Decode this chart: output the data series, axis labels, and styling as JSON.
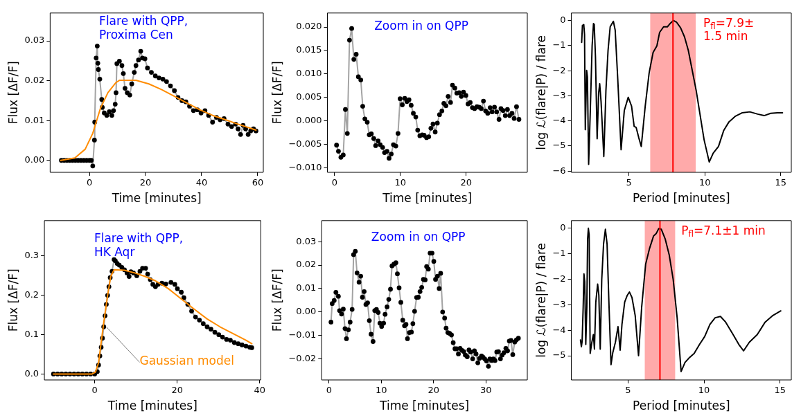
{
  "chart_data": [
    {
      "type": "line",
      "xlabel": "Time [minutes]",
      "ylabel": "Flux [ΔF/F]",
      "xlim": [
        -14,
        62
      ],
      "ylim": [
        -0.003,
        0.037
      ],
      "xticks": [
        0,
        20,
        40,
        60
      ],
      "yticks": [
        {
          "value": 0,
          "label": "0.00"
        },
        0.01,
        0.02,
        0.03
      ],
      "marker": "circle",
      "annotations": [
        "Flare with QPP,\nProxima Cen"
      ],
      "series": [
        {
          "color": "#000000",
          "x": [
            -10,
            -9,
            -8,
            -7,
            -6,
            -5,
            -4,
            -3,
            -2,
            -1,
            0,
            0.7,
            1.2,
            1.8,
            1.9,
            2.4,
            2.8,
            3.0,
            3.2,
            3.7,
            4.4,
            4.6,
            5.3,
            6.2,
            7.1,
            8.0,
            8.6,
            9.2,
            9.5,
            9.8,
            10.7,
            11.6,
            12.1,
            12.7,
            13.5,
            14.4,
            15.1,
            16.0,
            16.6,
            17.5,
            18.3,
            18.9,
            19.8,
            20.7,
            22.1,
            23.5,
            24.8,
            26.2,
            27.5,
            28.9,
            30.3,
            31.6,
            33.0,
            34.4,
            35.7,
            37.1,
            38.5,
            39.8,
            41.2,
            42.5,
            43.9,
            45.3,
            46.6,
            48.0,
            49.4,
            50.7,
            52.1,
            53.0,
            53.9,
            54.8,
            55.7,
            56.6,
            57.5,
            58.5,
            59.4
          ],
          "values": [
            0,
            0,
            0,
            0,
            0,
            0,
            0,
            0,
            0,
            0,
            0,
            0,
            -0.0014,
            0.0051,
            0.0096,
            0.0257,
            0.0287,
            0.0244,
            0.0228,
            0.0204,
            0.0153,
            0.0133,
            0.0119,
            0.0113,
            0.0122,
            0.0113,
            0.0125,
            0.0141,
            0.017,
            0.0243,
            0.0249,
            0.0238,
            0.0218,
            0.0181,
            0.017,
            0.0164,
            0.0192,
            0.0221,
            0.0238,
            0.0252,
            0.0274,
            0.0257,
            0.0255,
            0.0232,
            0.0221,
            0.0212,
            0.0207,
            0.0204,
            0.0198,
            0.0187,
            0.0175,
            0.0158,
            0.015,
            0.0147,
            0.0136,
            0.0125,
            0.0127,
            0.0119,
            0.0125,
            0.0113,
            0.0096,
            0.0108,
            0.0102,
            0.0105,
            0.0091,
            0.0085,
            0.0091,
            0.0079,
            0.0065,
            0.0088,
            0.0079,
            0.0065,
            0.0074,
            0.0079,
            0.0074
          ]
        },
        {
          "color": "#ff8c00",
          "marker": "none",
          "x": [
            -10.2,
            -5.2,
            -1.5,
            1.2,
            3.9,
            6.6,
            9.4,
            10.7,
            16.6,
            21.2,
            25.7,
            30.3,
            34.8,
            39.4,
            43.9,
            48.5,
            53.0,
            59.4
          ],
          "values": [
            0,
            0.0006,
            0.0028,
            0.0068,
            0.013,
            0.017,
            0.0195,
            0.0201,
            0.0201,
            0.0192,
            0.0178,
            0.0161,
            0.0144,
            0.0127,
            0.0113,
            0.0102,
            0.0091,
            0.0076
          ]
        }
      ]
    },
    {
      "type": "line",
      "xlabel": "Time [minutes]",
      "ylabel": "Flux [ΔF/F]",
      "xlim": [
        -1.1,
        29.3
      ],
      "ylim": [
        -0.011,
        0.023
      ],
      "xticks": [
        0,
        10,
        20
      ],
      "yticks": [
        {
          "value": -0.01,
          "label": "−0.010"
        },
        {
          "value": -0.005,
          "label": "−0.005"
        },
        {
          "value": 0,
          "label": "0.000"
        },
        {
          "value": 0.005,
          "label": "0.005"
        },
        {
          "value": 0.01,
          "label": "0.010"
        },
        {
          "value": 0.015,
          "label": "0.015"
        },
        {
          "value": 0.02,
          "label": "0.020"
        }
      ],
      "marker": "circle",
      "annotations": [
        "Zoom in on QPP"
      ],
      "series": [
        {
          "color": "#000000",
          "x": [
            0.29,
            0.58,
            0.95,
            1.31,
            1.64,
            1.93,
            2.26,
            2.59,
            2.92,
            3.28,
            3.61,
            3.98,
            4.27,
            4.6,
            4.96,
            5.26,
            5.58,
            5.95,
            6.24,
            6.61,
            6.93,
            7.3,
            7.59,
            7.96,
            8.28,
            8.61,
            8.94,
            9.31,
            9.64,
            9.96,
            10.29,
            10.66,
            10.99,
            11.31,
            11.64,
            11.97,
            12.34,
            12.63,
            12.96,
            13.32,
            13.61,
            13.98,
            14.31,
            14.64,
            14.96,
            15.29,
            15.62,
            15.95,
            16.31,
            16.61,
            16.93,
            17.26,
            17.63,
            17.92,
            18.28,
            18.58,
            18.94,
            19.27,
            19.6,
            19.96,
            20.29,
            20.62,
            20.95,
            21.28,
            21.64,
            21.97,
            22.3,
            22.63,
            22.96,
            23.28,
            23.65,
            23.94,
            24.31,
            24.64,
            25.0,
            25.29,
            25.62,
            25.95,
            26.28,
            26.61,
            26.97,
            27.3,
            27.66,
            28.03
          ],
          "values": [
            -0.0052,
            -0.0065,
            -0.0078,
            -0.0073,
            0.0024,
            -0.0027,
            0.0172,
            0.0197,
            0.0131,
            0.0142,
            0.0094,
            0.0087,
            0.0031,
            0.0004,
            -0.0003,
            -0.003,
            -0.0028,
            -0.0038,
            -0.0053,
            -0.0043,
            -0.0051,
            -0.0057,
            -0.0068,
            -0.0065,
            -0.008,
            -0.0071,
            -0.0051,
            -0.0054,
            -0.0027,
            0.0047,
            0.0034,
            0.0048,
            0.0041,
            0.0045,
            0.0033,
            0.0016,
            0.0008,
            -0.002,
            -0.0032,
            -0.003,
            -0.0031,
            -0.0036,
            -0.0034,
            -0.0016,
            -0.0007,
            -0.0024,
            -0.0005,
            0.0013,
            0.0021,
            0.0037,
            0.0032,
            0.0052,
            0.0039,
            0.0076,
            0.007,
            0.0059,
            0.006,
            0.0052,
            0.0061,
            0.0054,
            0.0036,
            0.0039,
            0.0028,
            0.0026,
            0.003,
            0.0029,
            0.0026,
            0.0042,
            0.0021,
            0.0016,
            0.0028,
            0.0019,
            0.0029,
            0.0019,
            0.0003,
            0.0026,
            0.0022,
            0.0011,
            0.0024,
            0.0011,
            0.0016,
            0.0005,
            0.003,
            0.0003
          ]
        }
      ]
    },
    {
      "type": "line",
      "xlabel": "Period [minutes]",
      "ylabel": "log ℒ(flare|P) / flare",
      "xlim": [
        1.2,
        15.7
      ],
      "ylim": [
        -6.05,
        0.3
      ],
      "xticks": [
        5,
        10,
        15
      ],
      "yticks": [
        {
          "value": -6,
          "label": "−6"
        },
        {
          "value": -5,
          "label": "−5"
        },
        {
          "value": -4,
          "label": "−4"
        },
        {
          "value": -3,
          "label": "−3"
        },
        {
          "value": -2,
          "label": "−2"
        },
        {
          "value": -1,
          "label": "−1"
        },
        0
      ],
      "marker": "none",
      "annotations": [
        "P$_{fl}$=7.9±\n1.5 min"
      ],
      "ref_lines": [
        {
          "axis": "x",
          "value": 7.9,
          "color": "#ff0000"
        }
      ],
      "bands": [
        {
          "axis": "x",
          "from": 6.4,
          "to": 9.4,
          "color": "#ffaaaa"
        }
      ],
      "series": [
        {
          "color": "#000000",
          "x": [
            1.88,
            1.93,
            2.02,
            2.07,
            2.12,
            2.21,
            2.26,
            2.34,
            2.45,
            2.57,
            2.66,
            2.71,
            2.79,
            2.9,
            3.0,
            3.07,
            3.16,
            3.34,
            3.48,
            3.62,
            3.76,
            3.97,
            4.09,
            4.26,
            4.48,
            4.69,
            4.95,
            5.17,
            5.34,
            5.47,
            5.64,
            5.81,
            6.07,
            6.33,
            6.59,
            6.84,
            7.02,
            7.28,
            7.53,
            7.71,
            7.93,
            8.14,
            8.4,
            8.66,
            8.91,
            9.17,
            9.43,
            9.69,
            9.95,
            10.29,
            10.55,
            10.9,
            11.24,
            11.59,
            12.02,
            12.45,
            12.97,
            13.48,
            13.91,
            14.34,
            14.78,
            15.12
          ],
          "values": [
            -0.87,
            -0.2,
            -0.16,
            -0.56,
            -4.35,
            -1.99,
            -2.25,
            -5.73,
            -3.59,
            -1.01,
            -0.12,
            -0.16,
            -1.45,
            -4.71,
            -2.88,
            -2.52,
            -3.24,
            -5.42,
            -2.79,
            -1.19,
            -0.25,
            -0.03,
            -0.38,
            -2.34,
            -5.15,
            -3.59,
            -3.06,
            -3.41,
            -4.22,
            -4.26,
            -4.66,
            -5.02,
            -3.41,
            -2.08,
            -1.27,
            -1.01,
            -0.47,
            -0.25,
            -0.25,
            -0.12,
            0,
            -0.07,
            -0.29,
            -0.65,
            -1.19,
            -1.99,
            -2.79,
            -3.77,
            -4.75,
            -5.64,
            -5.29,
            -5.02,
            -4.39,
            -4.04,
            -3.81,
            -3.68,
            -3.64,
            -3.73,
            -3.79,
            -3.7,
            -3.68,
            -3.68
          ]
        }
      ]
    },
    {
      "type": "line",
      "xlabel": "Time [minutes]",
      "ylabel": "Flux [ΔF/F]",
      "xlim": [
        -12.2,
        40.3
      ],
      "ylim": [
        -0.015,
        0.39
      ],
      "xticks": [
        0,
        20,
        40
      ],
      "yticks": [
        {
          "value": 0,
          "label": "0.0"
        },
        0.1,
        0.2,
        0.3
      ],
      "marker": "circle",
      "annotations": [
        "Flare with QPP,\nHK Aqr",
        {
          "text": "Gaussian model",
          "x": 2.8,
          "y": 0.12
        }
      ],
      "series": [
        {
          "color": "#000000",
          "x": [
            -10,
            -9,
            -8,
            -7,
            -6,
            -5,
            -4,
            -3,
            -2,
            -1,
            0,
            0.63,
            0.94,
            1.25,
            1.57,
            1.88,
            2.19,
            2.51,
            2.82,
            3.13,
            3.45,
            3.76,
            4.2,
            4.7,
            5.0,
            5.45,
            5.96,
            6.58,
            7.21,
            7.84,
            8.34,
            8.78,
            9.4,
            10.2,
            10.97,
            11.6,
            12.35,
            12.85,
            13.48,
            14.1,
            14.73,
            15.36,
            16.3,
            17.24,
            18.5,
            19.44,
            20.06,
            21.0,
            21.63,
            22.57,
            23.5,
            24.45,
            25.4,
            26.33,
            27.27,
            28.2,
            29.15,
            30.1,
            31.0,
            31.97,
            32.9,
            33.86,
            34.8,
            35.74,
            36.68,
            37.6,
            38.1
          ],
          "values": [
            0,
            0,
            0,
            0,
            0,
            0,
            0,
            0,
            0,
            0,
            0,
            0.006,
            0.023,
            0.046,
            0.068,
            0.091,
            0.12,
            0.148,
            0.177,
            0.2,
            0.222,
            0.245,
            0.261,
            0.291,
            0.288,
            0.281,
            0.277,
            0.271,
            0.265,
            0.257,
            0.248,
            0.26,
            0.257,
            0.25,
            0.261,
            0.269,
            0.269,
            0.254,
            0.24,
            0.228,
            0.222,
            0.228,
            0.231,
            0.229,
            0.233,
            0.228,
            0.217,
            0.208,
            0.194,
            0.177,
            0.16,
            0.145,
            0.137,
            0.128,
            0.12,
            0.114,
            0.106,
            0.1,
            0.094,
            0.088,
            0.086,
            0.08,
            0.077,
            0.074,
            0.071,
            0.068,
            0.067
          ]
        },
        {
          "color": "#ff8c00",
          "marker": "none",
          "x": [
            -10,
            -0.63,
            0.19,
            0.94,
            2.19,
            3.13,
            3.89,
            4.7,
            7.21,
            9.72,
            12.23,
            14.73,
            17.87,
            21.0,
            24.14,
            27.27,
            30.4,
            33.5,
            36.68,
            38.1
          ],
          "values": [
            0,
            0,
            0.005,
            0.029,
            0.131,
            0.2,
            0.248,
            0.265,
            0.264,
            0.257,
            0.248,
            0.237,
            0.217,
            0.191,
            0.165,
            0.14,
            0.12,
            0.103,
            0.086,
            0.077
          ]
        }
      ]
    },
    {
      "type": "line",
      "xlabel": "Time [minutes]",
      "ylabel": "Flux [ΔF/F]",
      "xlim": [
        -1.4,
        37.9
      ],
      "ylim": [
        -0.029,
        0.039
      ],
      "xticks": [
        0,
        10,
        20,
        30
      ],
      "yticks": [
        {
          "value": -0.02,
          "label": "−0.02"
        },
        {
          "value": -0.01,
          "label": "−0.01"
        },
        {
          "value": 0,
          "label": "0.00"
        },
        0.01,
        0.02,
        0.03
      ],
      "marker": "circle",
      "annotations": [
        "Zoom in on QPP"
      ],
      "series": [
        {
          "color": "#000000",
          "x": [
            0.38,
            0.61,
            0.99,
            1.32,
            1.79,
            2.02,
            2.4,
            2.73,
            3.06,
            3.34,
            3.71,
            4.04,
            4.42,
            4.7,
            5.03,
            5.36,
            5.74,
            6.06,
            6.39,
            6.72,
            7.05,
            7.38,
            7.71,
            8.04,
            8.42,
            8.74,
            9.07,
            9.4,
            9.73,
            10.06,
            10.44,
            10.72,
            11.1,
            11.42,
            11.75,
            12.04,
            12.41,
            12.79,
            13.07,
            13.4,
            13.73,
            14.1,
            14.43,
            14.72,
            15.0,
            15.37,
            15.75,
            16.03,
            16.36,
            16.74,
            17.07,
            17.4,
            17.72,
            18.05,
            18.38,
            18.66,
            18.99,
            19.32,
            19.7,
            20.03,
            20.36,
            20.73,
            21.06,
            21.34,
            21.72,
            22.1,
            22.38,
            22.71,
            23.04,
            23.41,
            23.74,
            24.07,
            24.4,
            24.73,
            25.06,
            25.43,
            25.76,
            26.05,
            26.42,
            26.75,
            27.08,
            27.46,
            27.79,
            28.11,
            28.44,
            28.77,
            29.15,
            29.43,
            29.76,
            30.09,
            30.47,
            30.75,
            31.08,
            31.41,
            31.73,
            32.06,
            32.39,
            32.77,
            33.1,
            33.43,
            33.8,
            34.13,
            34.46,
            34.79,
            35.12,
            35.5,
            35.82,
            36.2
          ],
          "values": [
            -0.0043,
            0.0036,
            0.0049,
            0.0084,
            0.0067,
            0.0006,
            -0.0009,
            0.0012,
            -0.0071,
            -0.0114,
            -0.0076,
            -0.0043,
            0.0011,
            0.0245,
            0.0259,
            0.0167,
            0.0127,
            0.0153,
            0.0063,
            0.0087,
            0.0032,
            0.0039,
            -0.0037,
            -0.0095,
            -0.0126,
            0.0006,
            0.0011,
            -0.0002,
            -0.0048,
            -0.0062,
            -0.0048,
            -0.001,
            0.0022,
            0.0054,
            0.0097,
            0.0197,
            0.0204,
            0.021,
            0.0163,
            0.0103,
            0.0041,
            -0.0035,
            -0.0059,
            -0.0053,
            -0.0114,
            -0.0088,
            -0.0086,
            -0.005,
            0.0003,
            0.0062,
            0.0063,
            0.0087,
            0.0105,
            0.0139,
            0.0137,
            0.0194,
            0.0183,
            0.0251,
            0.0251,
            0.0216,
            0.0139,
            0.0153,
            0.01,
            0.0165,
            0,
            -0.0026,
            -0.0069,
            -0.0088,
            -0.0091,
            -0.0098,
            -0.0131,
            -0.0157,
            -0.0157,
            -0.0179,
            -0.0155,
            -0.0164,
            -0.0169,
            -0.0184,
            -0.0191,
            -0.0162,
            -0.0171,
            -0.02,
            -0.0166,
            -0.0179,
            -0.0217,
            -0.0198,
            -0.0188,
            -0.0193,
            -0.02,
            -0.0209,
            -0.0232,
            -0.02,
            -0.0207,
            -0.02,
            -0.0207,
            -0.0171,
            -0.0169,
            -0.02,
            -0.0184,
            -0.0174,
            -0.0155,
            -0.0166,
            -0.0124,
            -0.0121,
            -0.0182,
            -0.0128,
            -0.0119,
            -0.0112
          ]
        }
      ]
    },
    {
      "type": "line",
      "xlabel": "Period [minutes]",
      "ylabel": "log ℒ(flare|P) / flare",
      "xlim": [
        1.27,
        15.74
      ],
      "ylim": [
        -5.95,
        0.3
      ],
      "xticks": [
        5,
        10,
        15
      ],
      "yticks": [
        {
          "value": -5,
          "label": "−5"
        },
        {
          "value": -4,
          "label": "−4"
        },
        {
          "value": -3,
          "label": "−3"
        },
        {
          "value": -2,
          "label": "−2"
        },
        {
          "value": -1,
          "label": "−1"
        },
        0
      ],
      "marker": "none",
      "annotations": [
        "P$_{fl}$=7.1±1 min"
      ],
      "ref_lines": [
        {
          "axis": "x",
          "value": 7.1,
          "color": "#ff0000"
        }
      ],
      "bands": [
        {
          "axis": "x",
          "from": 6.1,
          "to": 8.1,
          "color": "#ffaaaa"
        }
      ],
      "series": [
        {
          "color": "#000000",
          "x": [
            1.87,
            1.93,
            1.98,
            2.05,
            2.1,
            2.15,
            2.22,
            2.29,
            2.34,
            2.39,
            2.44,
            2.51,
            2.62,
            2.72,
            2.79,
            2.88,
            3.0,
            3.08,
            3.17,
            3.27,
            3.39,
            3.51,
            3.62,
            3.74,
            3.88,
            4.0,
            4.17,
            4.34,
            4.48,
            4.6,
            4.78,
            4.95,
            5.09,
            5.26,
            5.47,
            5.69,
            5.9,
            6.16,
            6.42,
            6.68,
            6.85,
            7.02,
            7.19,
            7.45,
            7.71,
            7.97,
            8.23,
            8.49,
            8.75,
            9.01,
            9.35,
            9.7,
            10.04,
            10.39,
            10.73,
            11.08,
            11.42,
            11.86,
            12.29,
            12.6,
            12.98,
            13.5,
            14.02,
            14.53,
            15.05
          ],
          "values": [
            -4.38,
            -4.65,
            -4.43,
            -3.07,
            -1.79,
            -2.1,
            -4.56,
            -3.07,
            -0.43,
            0,
            -0.25,
            -4.91,
            -4.47,
            -4.17,
            -4.74,
            -2.89,
            -2.19,
            -2.63,
            -4.74,
            -2.01,
            -0.61,
            -0.04,
            -0.61,
            -2.89,
            -5.35,
            -4.87,
            -4.47,
            -3.86,
            -4.78,
            -3.77,
            -2.89,
            -2.63,
            -2.5,
            -2.72,
            -3.42,
            -5.0,
            -3.07,
            -1.4,
            -0.78,
            -0.3,
            -0.21,
            -0.01,
            -0.04,
            -0.43,
            -1.05,
            -2.01,
            -3.51,
            -5.62,
            -5.26,
            -5.09,
            -4.91,
            -4.56,
            -4.25,
            -3.77,
            -3.51,
            -3.46,
            -3.68,
            -4.12,
            -4.56,
            -4.81,
            -4.47,
            -4.17,
            -3.68,
            -3.42,
            -3.24
          ]
        }
      ]
    }
  ]
}
